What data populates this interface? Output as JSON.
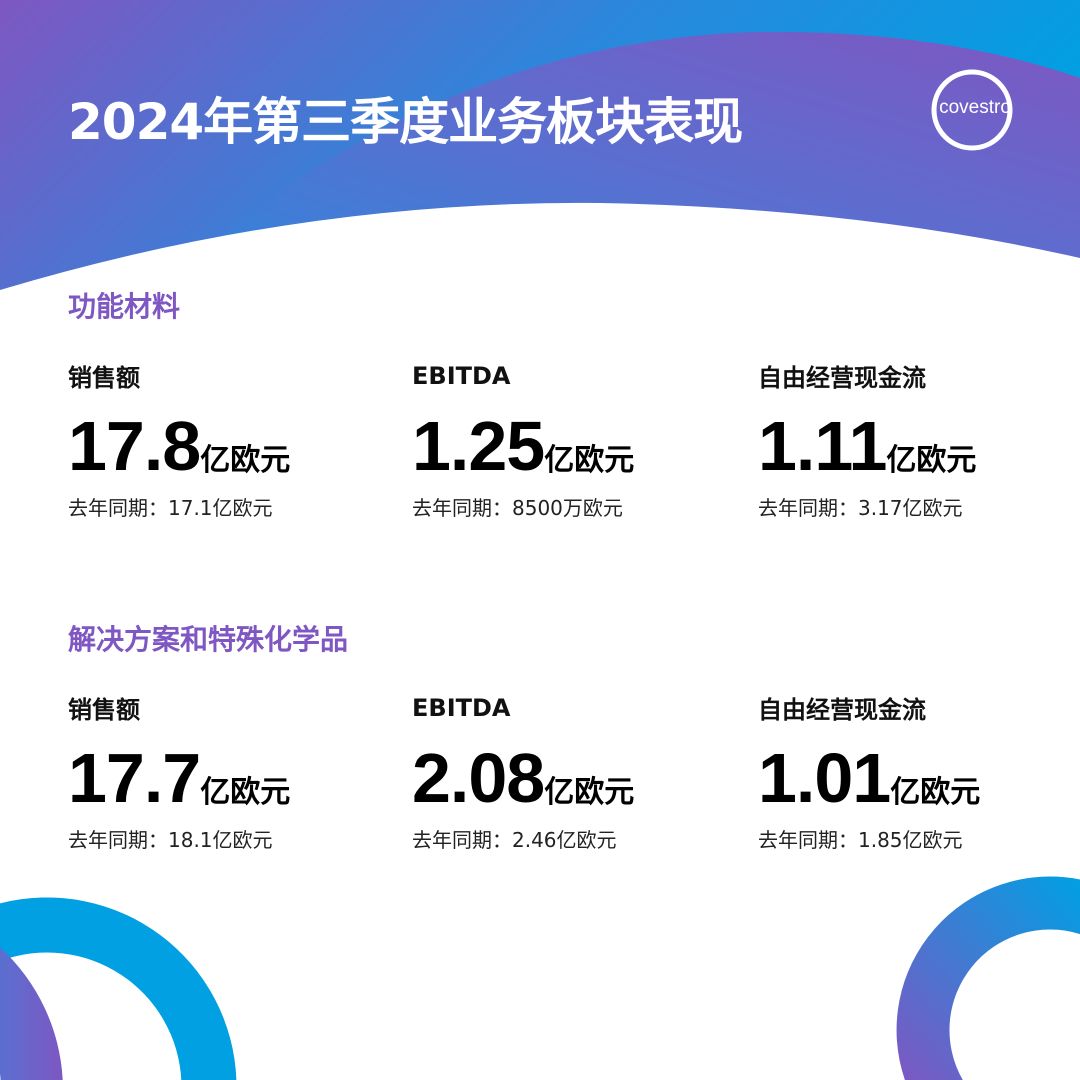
{
  "header": {
    "title": "2024年第三季度业务板块表现",
    "logo": "covestro"
  },
  "colors": {
    "purple": "#7e57c2",
    "blue": "#00a0e3",
    "accent_text": "#7e57c2"
  },
  "sections": [
    {
      "title": "功能材料",
      "metrics": [
        {
          "label": "销售额",
          "value": "17.8",
          "unit": "亿欧元",
          "previous": "去年同期：17.1亿欧元"
        },
        {
          "label": "EBITDA",
          "value": "1.25",
          "unit": "亿欧元",
          "previous": "去年同期：8500万欧元"
        },
        {
          "label": "自由经营现金流",
          "value": "1.11",
          "unit": "亿欧元",
          "previous": "去年同期：3.17亿欧元"
        }
      ]
    },
    {
      "title": "解决方案和特殊化学品",
      "metrics": [
        {
          "label": "销售额",
          "value": "17.7",
          "unit": "亿欧元",
          "previous": "去年同期：18.1亿欧元"
        },
        {
          "label": "EBITDA",
          "value": "2.08",
          "unit": "亿欧元",
          "previous": "去年同期：2.46亿欧元"
        },
        {
          "label": "自由经营现金流",
          "value": "1.01",
          "unit": "亿欧元",
          "previous": "去年同期：1.85亿欧元"
        }
      ]
    }
  ]
}
